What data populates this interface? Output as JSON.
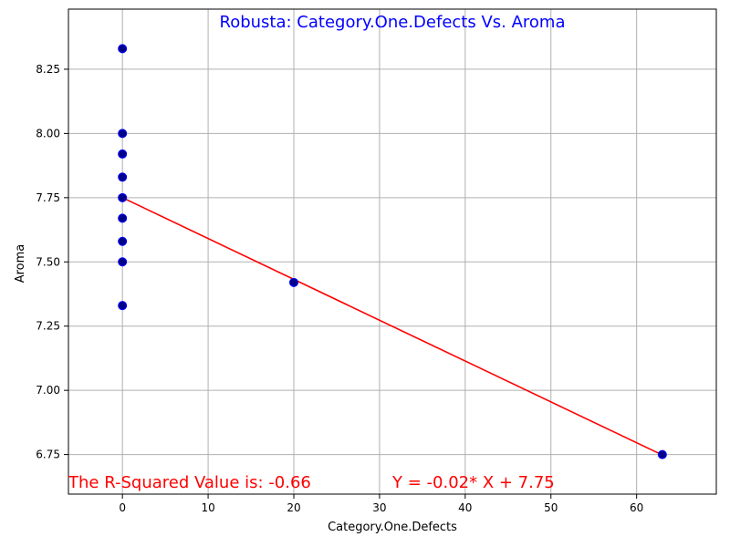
{
  "chart_data": {
    "type": "scatter",
    "title": "Robusta: Category.One.Defects Vs. Aroma",
    "xlabel": "Category.One.Defects",
    "ylabel": "Aroma",
    "xlim": [
      -6.3,
      69.3
    ],
    "ylim": [
      6.596,
      8.484
    ],
    "xticks": [
      0,
      10,
      20,
      30,
      40,
      50,
      60
    ],
    "yticks": [
      6.75,
      7.0,
      7.25,
      7.5,
      7.75,
      8.0,
      8.25
    ],
    "xtick_labels": [
      "0",
      "10",
      "20",
      "30",
      "40",
      "50",
      "60"
    ],
    "ytick_labels": [
      "6.75",
      "7.00",
      "7.25",
      "7.50",
      "7.75",
      "8.00",
      "8.25"
    ],
    "grid": true,
    "points": [
      {
        "x": 0,
        "y": 8.33
      },
      {
        "x": 0,
        "y": 8.0
      },
      {
        "x": 0,
        "y": 7.92
      },
      {
        "x": 0,
        "y": 7.83
      },
      {
        "x": 0,
        "y": 7.75
      },
      {
        "x": 0,
        "y": 7.67
      },
      {
        "x": 0,
        "y": 7.58
      },
      {
        "x": 0,
        "y": 7.5
      },
      {
        "x": 0,
        "y": 7.33
      },
      {
        "x": 20,
        "y": 7.42
      },
      {
        "x": 63,
        "y": 6.75
      }
    ],
    "fit_line": {
      "slope": -0.0159,
      "intercept": 7.75,
      "x_range": [
        0,
        63
      ]
    },
    "annotations": [
      {
        "text": "The R-Squared Value is: -0.66",
        "x": -6.3,
        "y": 6.62
      },
      {
        "text": "Y = -0.02* X + 7.75",
        "x": 31.5,
        "y": 6.62
      }
    ],
    "colors": {
      "title": "#0000ff",
      "point_fill": "#00008b",
      "point_edge": "#0000ff",
      "fit_line": "#ff0000",
      "annotation": "#ff0000",
      "grid": "#b0b0b0",
      "axis": "#000000"
    }
  }
}
